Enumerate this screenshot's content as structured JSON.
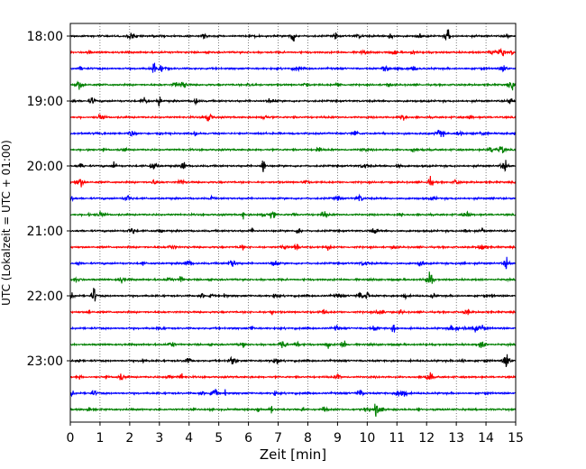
{
  "chart_data": {
    "type": "line",
    "chart_kind": "helicorder",
    "title": "",
    "xlabel": "Zeit  [min]",
    "ylabel": "UTC (Lokalzeit = UTC + 01:00)",
    "xlim": [
      0,
      15
    ],
    "x_ticks": [
      "0",
      "1",
      "2",
      "3",
      "4",
      "5",
      "6",
      "7",
      "8",
      "9",
      "10",
      "11",
      "12",
      "13",
      "14",
      "15"
    ],
    "y_tick_labels": [
      "18:00",
      "19:00",
      "20:00",
      "21:00",
      "22:00",
      "23:00"
    ],
    "rows_per_hour": 4,
    "row_minutes": 15,
    "row_start_times": [
      "18:00",
      "18:15",
      "18:30",
      "18:45",
      "19:00",
      "19:15",
      "19:30",
      "19:45",
      "20:00",
      "20:15",
      "20:30",
      "20:45",
      "21:00",
      "21:15",
      "21:30",
      "21:45",
      "22:00",
      "22:15",
      "22:30",
      "22:45",
      "23:00",
      "23:15",
      "23:30",
      "23:45"
    ],
    "row_colors": [
      "#000000",
      "#ff0000",
      "#0000ff",
      "#008000"
    ],
    "grid": {
      "x": true,
      "style": "dotted"
    },
    "events": [
      {
        "row": 0,
        "minute": 10.8,
        "amplitude": 0.35
      },
      {
        "row": 0,
        "minute": 12.7,
        "amplitude": 0.45
      },
      {
        "row": 4,
        "minute": 3.0,
        "amplitude": 0.35
      },
      {
        "row": 8,
        "minute": 1.5,
        "amplitude": 0.3
      },
      {
        "row": 8,
        "minute": 3.8,
        "amplitude": 0.4
      },
      {
        "row": 8,
        "minute": 6.5,
        "amplitude": 0.6
      },
      {
        "row": 12,
        "minute": 7.7,
        "amplitude": 0.3
      },
      {
        "row": 14,
        "minute": 11.8,
        "amplitude": 0.3
      },
      {
        "row": 16,
        "minute": 0.8,
        "amplitude": 0.3
      },
      {
        "row": 16,
        "minute": 10.0,
        "amplitude": 0.3
      },
      {
        "row": 18,
        "minute": 10.9,
        "amplitude": 0.35
      },
      {
        "row": 19,
        "minute": 9.2,
        "amplitude": 0.35
      },
      {
        "row": 22,
        "minute": 11.0,
        "amplitude": 0.3
      },
      {
        "row": 23,
        "minute": 10.3,
        "amplitude": 0.35
      }
    ]
  }
}
